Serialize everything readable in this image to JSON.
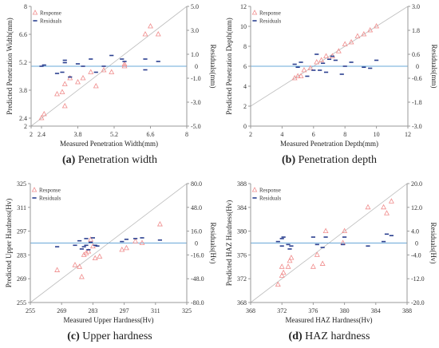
{
  "captions": [
    {
      "letter": "(a)",
      "text": " Penetration width"
    },
    {
      "letter": "(b)",
      "text": " Penetration depth"
    },
    {
      "letter": "(c)",
      "text": " Upper hardness"
    },
    {
      "letter": "(d)",
      "text": " HAZ hardness"
    }
  ],
  "colors": {
    "response": "#f08c8c",
    "residuals": "#2a3f8f",
    "zero_line": "#6aa8d8",
    "diagonal": "#bdbdbd",
    "axis": "#9a9a9a"
  },
  "chart_data": [
    {
      "type": "scatter",
      "xlabel": "Measured Penetration Width(mm)",
      "ylabel": "Predicted Penetration Width(mm)",
      "y2label": "Residuals(mm)",
      "xlim": [
        2,
        8
      ],
      "ylim": [
        2,
        8
      ],
      "y2lim": [
        -5,
        5
      ],
      "xticks": [
        "2",
        "2.4",
        "3.8",
        "5.2",
        "6.6",
        "8"
      ],
      "xtick_values": [
        2,
        2.4,
        3.8,
        5.2,
        6.6,
        8
      ],
      "yticks": [
        "2",
        "2.4",
        "3.8",
        "5.2",
        "6.6",
        "8"
      ],
      "ytick_values": [
        2,
        2.4,
        3.8,
        5.2,
        6.6,
        8
      ],
      "y2ticks": [
        "-5.0",
        "-3.0",
        "-1.0",
        "1.0",
        "3.0",
        "5.0"
      ],
      "y2tick_values": [
        -5,
        -3,
        -1,
        1,
        3,
        5
      ],
      "extra_y2_tick": {
        "value": 0,
        "label": "0"
      },
      "legend": [
        "Response",
        "Residuals"
      ],
      "legend_position": "top-left",
      "series": [
        {
          "name": "Response",
          "marker": "triangle",
          "points": [
            [
              2.4,
              2.4
            ],
            [
              2.5,
              2.6
            ],
            [
              3.0,
              3.6
            ],
            [
              3.2,
              3.7
            ],
            [
              3.3,
              3.0
            ],
            [
              3.3,
              4.1
            ],
            [
              3.5,
              4.4
            ],
            [
              3.8,
              4.2
            ],
            [
              4.0,
              4.4
            ],
            [
              4.3,
              4.7
            ],
            [
              4.5,
              4.0
            ],
            [
              4.8,
              4.8
            ],
            [
              5.1,
              4.7
            ],
            [
              5.6,
              5.1
            ],
            [
              5.6,
              5.0
            ],
            [
              6.4,
              6.6
            ],
            [
              6.6,
              7.0
            ],
            [
              6.9,
              6.6
            ]
          ]
        },
        {
          "name": "Residuals",
          "marker": "dash",
          "points": [
            [
              2.4,
              0.0
            ],
            [
              2.5,
              0.1
            ],
            [
              3.0,
              -0.6
            ],
            [
              3.2,
              -0.5
            ],
            [
              3.3,
              0.3
            ],
            [
              3.3,
              0.5
            ],
            [
              3.5,
              -0.9
            ],
            [
              3.8,
              0.2
            ],
            [
              4.0,
              0.0
            ],
            [
              4.3,
              0.6
            ],
            [
              4.5,
              -0.5
            ],
            [
              4.8,
              0.0
            ],
            [
              5.1,
              0.9
            ],
            [
              5.5,
              0.6
            ],
            [
              5.6,
              0.4
            ],
            [
              6.4,
              0.6
            ],
            [
              6.4,
              -0.3
            ],
            [
              6.9,
              0.4
            ]
          ]
        }
      ]
    },
    {
      "type": "scatter",
      "xlabel": "Measured Penetration Depth(mm)",
      "ylabel": "Predicted Penetration Depth(mm)",
      "y2label": "Residuals(mm)",
      "xlim": [
        2,
        12
      ],
      "ylim": [
        0,
        12
      ],
      "y2lim": [
        -3,
        3
      ],
      "xticks": [
        "2",
        "4",
        "6",
        "8",
        "10",
        "12"
      ],
      "xtick_values": [
        2,
        4,
        6,
        8,
        10,
        12
      ],
      "yticks": [
        "0",
        "2",
        "4",
        "6",
        "8",
        "10",
        "12"
      ],
      "ytick_values": [
        0,
        2,
        4,
        6,
        8,
        10,
        12
      ],
      "y2ticks": [
        "-3.0",
        "-1.8",
        "-0.6",
        "0.6",
        "1.8",
        "3.0"
      ],
      "y2tick_values": [
        -3,
        -1.8,
        -0.6,
        0.6,
        1.8,
        3
      ],
      "extra_y2_tick": {
        "value": 0,
        "label": "0"
      },
      "legend": [
        "Response",
        "Residuals"
      ],
      "legend_position": "top-left",
      "series": [
        {
          "name": "Response",
          "marker": "triangle",
          "points": [
            [
              4.8,
              4.8
            ],
            [
              5.0,
              5.0
            ],
            [
              5.2,
              5.0
            ],
            [
              5.4,
              5.6
            ],
            [
              5.8,
              5.8
            ],
            [
              6.2,
              6.4
            ],
            [
              6.5,
              6.6
            ],
            [
              6.8,
              7.0
            ],
            [
              7.2,
              7.0
            ],
            [
              7.6,
              7.5
            ],
            [
              8.0,
              8.2
            ],
            [
              8.4,
              8.4
            ],
            [
              8.8,
              9.0
            ],
            [
              9.2,
              9.2
            ],
            [
              9.6,
              9.6
            ],
            [
              10.0,
              10.0
            ]
          ]
        },
        {
          "name": "Residuals",
          "marker": "dash",
          "points": [
            [
              4.8,
              0.1
            ],
            [
              5.0,
              -0.05
            ],
            [
              5.2,
              0.2
            ],
            [
              5.6,
              -0.5
            ],
            [
              6.0,
              -0.2
            ],
            [
              6.2,
              0.6
            ],
            [
              6.4,
              -0.2
            ],
            [
              6.6,
              0.15
            ],
            [
              6.8,
              -0.3
            ],
            [
              7.0,
              0.35
            ],
            [
              7.2,
              0.5
            ],
            [
              7.4,
              0.3
            ],
            [
              7.8,
              -0.4
            ],
            [
              8.0,
              0.0
            ],
            [
              8.4,
              0.2
            ],
            [
              9.2,
              -0.05
            ],
            [
              9.6,
              -0.1
            ],
            [
              10.0,
              0.3
            ]
          ]
        }
      ]
    },
    {
      "type": "scatter",
      "xlabel": "Measured Upper Hardness(Hv)",
      "ylabel": "Predicted Upper Hardness(Hv)",
      "y2label": "Residuals(Hv)",
      "xlim": [
        255,
        325
      ],
      "ylim": [
        255,
        325
      ],
      "y2lim": [
        -80,
        80
      ],
      "xticks": [
        "255",
        "269",
        "283",
        "297",
        "311",
        "325"
      ],
      "xtick_values": [
        255,
        269,
        283,
        297,
        311,
        325
      ],
      "yticks": [
        "255",
        "269",
        "283",
        "297",
        "311",
        "325"
      ],
      "ytick_values": [
        255,
        269,
        283,
        297,
        311,
        325
      ],
      "y2ticks": [
        "-80.0",
        "-48.0",
        "-16.0",
        "16.0",
        "48.0",
        "80.0"
      ],
      "y2tick_values": [
        -80,
        -48,
        -16,
        16,
        48,
        80
      ],
      "extra_y2_tick": {
        "value": 0,
        "label": "0"
      },
      "legend": [
        "Response",
        "Residuals"
      ],
      "legend_position": "top-left",
      "series": [
        {
          "name": "Response",
          "marker": "triangle",
          "points": [
            [
              267,
              274
            ],
            [
              275,
              277
            ],
            [
              277,
              276
            ],
            [
              278,
              270
            ],
            [
              279,
              283
            ],
            [
              280,
              284
            ],
            [
              281,
              285
            ],
            [
              282,
              292
            ],
            [
              283,
              288
            ],
            [
              284,
              281
            ],
            [
              286,
              282
            ],
            [
              296,
              286
            ],
            [
              298,
              287
            ],
            [
              302,
              291
            ],
            [
              305,
              290
            ],
            [
              313,
              301
            ]
          ]
        },
        {
          "name": "Residuals",
          "marker": "dash",
          "points": [
            [
              267,
              -5
            ],
            [
              275,
              -3
            ],
            [
              277,
              3
            ],
            [
              278,
              -8
            ],
            [
              279,
              -5
            ],
            [
              280,
              -3
            ],
            [
              280,
              6
            ],
            [
              281,
              -9
            ],
            [
              282,
              1
            ],
            [
              283,
              7
            ],
            [
              284,
              -3
            ],
            [
              285,
              -4
            ],
            [
              296,
              2
            ],
            [
              298,
              5
            ],
            [
              302,
              6
            ],
            [
              305,
              7
            ],
            [
              313,
              4
            ]
          ]
        }
      ]
    },
    {
      "type": "scatter",
      "xlabel": "Measured HAZ Hardness(Hv)",
      "ylabel": "Predicted HAZ Hardness(Hv)",
      "y2label": "Residuals(Hv)",
      "xlim": [
        368,
        388
      ],
      "ylim": [
        368,
        388
      ],
      "y2lim": [
        -20,
        20
      ],
      "xticks": [
        "368",
        "372",
        "376",
        "380",
        "384",
        "388"
      ],
      "xtick_values": [
        368,
        372,
        376,
        380,
        384,
        388
      ],
      "yticks": [
        "368",
        "372",
        "376",
        "380",
        "384",
        "388"
      ],
      "ytick_values": [
        368,
        372,
        376,
        380,
        384,
        388
      ],
      "y2ticks": [
        "-20.0",
        "-12.0",
        "-4.0",
        "4.0",
        "12.0",
        "20.0"
      ],
      "y2tick_values": [
        -20,
        -12,
        -4,
        4,
        12,
        20
      ],
      "extra_y2_tick": {
        "value": 0,
        "label": "0"
      },
      "legend": [
        "Response",
        "Residuals"
      ],
      "legend_position": "top-left",
      "series": [
        {
          "name": "Response",
          "marker": "triangle",
          "points": [
            [
              371.5,
              371
            ],
            [
              372,
              372.5
            ],
            [
              372,
              374
            ],
            [
              372.2,
              373
            ],
            [
              372.8,
              374
            ],
            [
              373,
              375
            ],
            [
              373.2,
              375.5
            ],
            [
              376,
              374
            ],
            [
              376.5,
              376
            ],
            [
              377.2,
              374.5
            ],
            [
              377.6,
              380
            ],
            [
              379.8,
              378
            ],
            [
              380,
              380
            ],
            [
              383,
              384
            ],
            [
              385,
              384
            ],
            [
              385.4,
              383
            ],
            [
              386,
              385
            ]
          ]
        },
        {
          "name": "Residuals",
          "marker": "dash",
          "points": [
            [
              371.5,
              0.5
            ],
            [
              372,
              1.5
            ],
            [
              372,
              -1
            ],
            [
              372.2,
              2
            ],
            [
              372.8,
              -0.5
            ],
            [
              373,
              -2
            ],
            [
              373.2,
              -1
            ],
            [
              376,
              2
            ],
            [
              376.5,
              -0.5
            ],
            [
              377.2,
              -1.5
            ],
            [
              377.6,
              2
            ],
            [
              379.8,
              -0.5
            ],
            [
              380,
              2
            ],
            [
              383,
              -1
            ],
            [
              385,
              0.5
            ],
            [
              385.4,
              3
            ],
            [
              386,
              2.5
            ]
          ]
        }
      ]
    }
  ]
}
